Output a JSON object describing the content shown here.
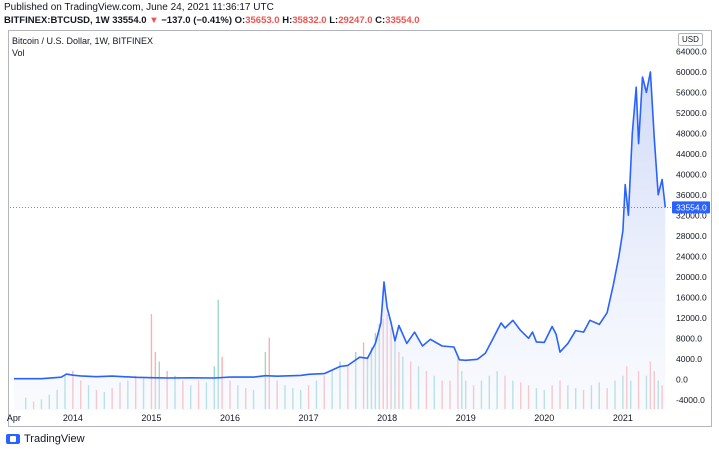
{
  "header": {
    "published": "Published on TradingView.com, June 24, 2021 11:36:17 UTC",
    "symbol": "BITFINEX:BTCUSD, 1W",
    "last": "33554.0",
    "change": "−137.0 (−0.41%)",
    "o_label": "O:",
    "o_value": "35653.0",
    "h_label": "H:",
    "h_value": "35832.0",
    "l_label": "L:",
    "l_value": "29247.0",
    "c_label": "C:",
    "c_value": "33554.0"
  },
  "legend": {
    "title": "Bitcoin / U.S. Dollar, 1W, BITFINEX",
    "vol": "Vol"
  },
  "currency": "USD",
  "price_tag": "33554.0",
  "brand": "TradingView",
  "colors": {
    "line": "#2962ff",
    "area_top": "#c7d3f6",
    "vol_up": "#26a69a",
    "vol_down": "#ef5350",
    "price_tag_bg": "#2962ff"
  },
  "chart_data": {
    "type": "area",
    "ylim": [
      -6000,
      67000
    ],
    "y_ticks": [
      "64000.0",
      "60000.0",
      "56000.0",
      "52000.0",
      "48000.0",
      "44000.0",
      "40000.0",
      "36000.0",
      "32000.0",
      "28000.0",
      "24000.0",
      "20000.0",
      "16000.0",
      "12000.0",
      "8000.0",
      "4000.0",
      "0.0",
      "-4000.0"
    ],
    "x_ticks": [
      "Apr",
      "2014",
      "2015",
      "2016",
      "2017",
      "2018",
      "2019",
      "2020",
      "2021"
    ],
    "x_tick_times": [
      2013.25,
      2014.0,
      2015.0,
      2016.0,
      2017.0,
      2018.0,
      2019.0,
      2020.0,
      2021.0
    ],
    "xlim": [
      2013.2,
      2021.6
    ],
    "series": [
      {
        "points": [
          [
            2013.25,
            100
          ],
          [
            2013.6,
            110
          ],
          [
            2013.85,
            400
          ],
          [
            2013.92,
            1000
          ],
          [
            2014.0,
            800
          ],
          [
            2014.1,
            650
          ],
          [
            2014.3,
            500
          ],
          [
            2014.5,
            620
          ],
          [
            2014.8,
            380
          ],
          [
            2015.0,
            300
          ],
          [
            2015.2,
            240
          ],
          [
            2015.5,
            280
          ],
          [
            2015.8,
            240
          ],
          [
            2016.0,
            430
          ],
          [
            2016.3,
            420
          ],
          [
            2016.45,
            700
          ],
          [
            2016.6,
            600
          ],
          [
            2016.9,
            750
          ],
          [
            2017.0,
            960
          ],
          [
            2017.2,
            1100
          ],
          [
            2017.4,
            2500
          ],
          [
            2017.5,
            2700
          ],
          [
            2017.65,
            4300
          ],
          [
            2017.75,
            4100
          ],
          [
            2017.85,
            7000
          ],
          [
            2017.92,
            11000
          ],
          [
            2017.96,
            19000
          ],
          [
            2018.0,
            14000
          ],
          [
            2018.05,
            11000
          ],
          [
            2018.1,
            7500
          ],
          [
            2018.15,
            10500
          ],
          [
            2018.25,
            7000
          ],
          [
            2018.35,
            9200
          ],
          [
            2018.45,
            6500
          ],
          [
            2018.55,
            7800
          ],
          [
            2018.7,
            6500
          ],
          [
            2018.85,
            6300
          ],
          [
            2018.92,
            3800
          ],
          [
            2019.0,
            3700
          ],
          [
            2019.15,
            3900
          ],
          [
            2019.25,
            5100
          ],
          [
            2019.35,
            8000
          ],
          [
            2019.45,
            11000
          ],
          [
            2019.5,
            10000
          ],
          [
            2019.6,
            11500
          ],
          [
            2019.7,
            9500
          ],
          [
            2019.8,
            8000
          ],
          [
            2019.85,
            9200
          ],
          [
            2019.9,
            7300
          ],
          [
            2020.0,
            7200
          ],
          [
            2020.1,
            10300
          ],
          [
            2020.15,
            8800
          ],
          [
            2020.2,
            5300
          ],
          [
            2020.3,
            7000
          ],
          [
            2020.4,
            9500
          ],
          [
            2020.5,
            9200
          ],
          [
            2020.58,
            11500
          ],
          [
            2020.7,
            10700
          ],
          [
            2020.8,
            13000
          ],
          [
            2020.88,
            18500
          ],
          [
            2020.95,
            24000
          ],
          [
            2021.0,
            29000
          ],
          [
            2021.03,
            38000
          ],
          [
            2021.07,
            32000
          ],
          [
            2021.12,
            48000
          ],
          [
            2021.17,
            57000
          ],
          [
            2021.2,
            46000
          ],
          [
            2021.25,
            59000
          ],
          [
            2021.3,
            56000
          ],
          [
            2021.35,
            60000
          ],
          [
            2021.4,
            47000
          ],
          [
            2021.45,
            36000
          ],
          [
            2021.5,
            39000
          ],
          [
            2021.54,
            33554
          ]
        ]
      }
    ],
    "volume": [
      [
        2013.4,
        0.12,
        "up"
      ],
      [
        2013.5,
        0.08,
        "down"
      ],
      [
        2013.6,
        0.1,
        "up"
      ],
      [
        2013.7,
        0.15,
        "up"
      ],
      [
        2013.8,
        0.2,
        "up"
      ],
      [
        2013.9,
        0.35,
        "up"
      ],
      [
        2014.0,
        0.4,
        "down"
      ],
      [
        2014.1,
        0.3,
        "down"
      ],
      [
        2014.2,
        0.25,
        "up"
      ],
      [
        2014.3,
        0.2,
        "down"
      ],
      [
        2014.4,
        0.18,
        "up"
      ],
      [
        2014.5,
        0.22,
        "down"
      ],
      [
        2014.6,
        0.28,
        "down"
      ],
      [
        2014.7,
        0.3,
        "up"
      ],
      [
        2014.8,
        0.35,
        "down"
      ],
      [
        2014.9,
        0.32,
        "up"
      ],
      [
        2015.0,
        1.0,
        "down"
      ],
      [
        2015.05,
        0.6,
        "down"
      ],
      [
        2015.1,
        0.5,
        "up"
      ],
      [
        2015.2,
        0.4,
        "down"
      ],
      [
        2015.3,
        0.35,
        "up"
      ],
      [
        2015.4,
        0.3,
        "down"
      ],
      [
        2015.5,
        0.25,
        "up"
      ],
      [
        2015.6,
        0.3,
        "down"
      ],
      [
        2015.7,
        0.28,
        "up"
      ],
      [
        2015.8,
        0.45,
        "up"
      ],
      [
        2015.85,
        1.15,
        "up"
      ],
      [
        2015.9,
        0.55,
        "down"
      ],
      [
        2016.0,
        0.3,
        "down"
      ],
      [
        2016.1,
        0.25,
        "up"
      ],
      [
        2016.2,
        0.22,
        "down"
      ],
      [
        2016.3,
        0.2,
        "up"
      ],
      [
        2016.45,
        0.6,
        "up"
      ],
      [
        2016.5,
        0.75,
        "down"
      ],
      [
        2016.6,
        0.3,
        "down"
      ],
      [
        2016.7,
        0.25,
        "up"
      ],
      [
        2016.8,
        0.22,
        "up"
      ],
      [
        2016.9,
        0.2,
        "up"
      ],
      [
        2017.0,
        0.25,
        "down"
      ],
      [
        2017.1,
        0.3,
        "up"
      ],
      [
        2017.2,
        0.35,
        "down"
      ],
      [
        2017.3,
        0.4,
        "up"
      ],
      [
        2017.4,
        0.5,
        "up"
      ],
      [
        2017.5,
        0.45,
        "down"
      ],
      [
        2017.6,
        0.6,
        "up"
      ],
      [
        2017.7,
        0.7,
        "down"
      ],
      [
        2017.75,
        0.55,
        "up"
      ],
      [
        2017.8,
        0.65,
        "up"
      ],
      [
        2017.85,
        0.8,
        "up"
      ],
      [
        2017.9,
        0.9,
        "up"
      ],
      [
        2017.95,
        0.95,
        "down"
      ],
      [
        2018.0,
        1.0,
        "down"
      ],
      [
        2018.05,
        0.85,
        "down"
      ],
      [
        2018.1,
        0.75,
        "up"
      ],
      [
        2018.15,
        0.6,
        "down"
      ],
      [
        2018.2,
        0.55,
        "up"
      ],
      [
        2018.3,
        0.5,
        "down"
      ],
      [
        2018.4,
        0.45,
        "up"
      ],
      [
        2018.5,
        0.4,
        "down"
      ],
      [
        2018.6,
        0.35,
        "up"
      ],
      [
        2018.7,
        0.3,
        "down"
      ],
      [
        2018.8,
        0.3,
        "down"
      ],
      [
        2018.9,
        0.55,
        "down"
      ],
      [
        2018.95,
        0.4,
        "up"
      ],
      [
        2019.0,
        0.3,
        "up"
      ],
      [
        2019.1,
        0.25,
        "down"
      ],
      [
        2019.2,
        0.3,
        "up"
      ],
      [
        2019.3,
        0.35,
        "up"
      ],
      [
        2019.4,
        0.4,
        "up"
      ],
      [
        2019.5,
        0.35,
        "down"
      ],
      [
        2019.6,
        0.3,
        "up"
      ],
      [
        2019.7,
        0.28,
        "down"
      ],
      [
        2019.8,
        0.25,
        "down"
      ],
      [
        2019.9,
        0.22,
        "up"
      ],
      [
        2020.0,
        0.2,
        "up"
      ],
      [
        2020.1,
        0.25,
        "down"
      ],
      [
        2020.2,
        0.3,
        "down"
      ],
      [
        2020.3,
        0.25,
        "up"
      ],
      [
        2020.4,
        0.22,
        "up"
      ],
      [
        2020.5,
        0.2,
        "down"
      ],
      [
        2020.6,
        0.25,
        "up"
      ],
      [
        2020.7,
        0.28,
        "up"
      ],
      [
        2020.8,
        0.22,
        "down"
      ],
      [
        2020.9,
        0.3,
        "up"
      ],
      [
        2021.0,
        0.35,
        "up"
      ],
      [
        2021.05,
        0.45,
        "down"
      ],
      [
        2021.1,
        0.3,
        "up"
      ],
      [
        2021.2,
        0.4,
        "down"
      ],
      [
        2021.3,
        0.35,
        "up"
      ],
      [
        2021.35,
        0.5,
        "down"
      ],
      [
        2021.4,
        0.4,
        "down"
      ],
      [
        2021.45,
        0.3,
        "up"
      ],
      [
        2021.5,
        0.25,
        "down"
      ]
    ],
    "last_value": 33554
  }
}
